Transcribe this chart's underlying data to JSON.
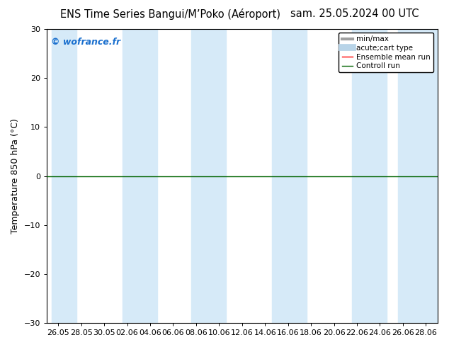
{
  "title_left": "ENS Time Series Bangui/M’Poko (Aéroport)",
  "title_right": "sam. 25.05.2024 00 UTC",
  "ylabel": "Temperature 850 hPa (°C)",
  "watermark": "© wofrance.fr",
  "ylim": [
    -30,
    30
  ],
  "yticks": [
    -30,
    -20,
    -10,
    0,
    10,
    20,
    30
  ],
  "xtick_labels": [
    "26.05",
    "28.05",
    "30.05",
    "02.06",
    "04.06",
    "06.06",
    "08.06",
    "10.06",
    "12.06",
    "14.06",
    "16.06",
    "18.06",
    "20.06",
    "22.06",
    "24.06",
    "26.06",
    "28.06"
  ],
  "band_color": "#d6eaf8",
  "zero_line_color": "#006400",
  "legend_items": [
    {
      "label": "min/max",
      "color": "#a0a0a0",
      "lw": 3,
      "ls": "-"
    },
    {
      "label": "acute;cart type",
      "color": "#b8d4e8",
      "lw": 7,
      "ls": "-"
    },
    {
      "label": "Ensemble mean run",
      "color": "#ff0000",
      "lw": 1.0,
      "ls": "-"
    },
    {
      "label": "Controll run",
      "color": "#006400",
      "lw": 1.0,
      "ls": "-"
    }
  ],
  "watermark_color": "#1a6fce",
  "title_fontsize": 10.5,
  "ylabel_fontsize": 9,
  "tick_fontsize": 8,
  "legend_fontsize": 7.5
}
